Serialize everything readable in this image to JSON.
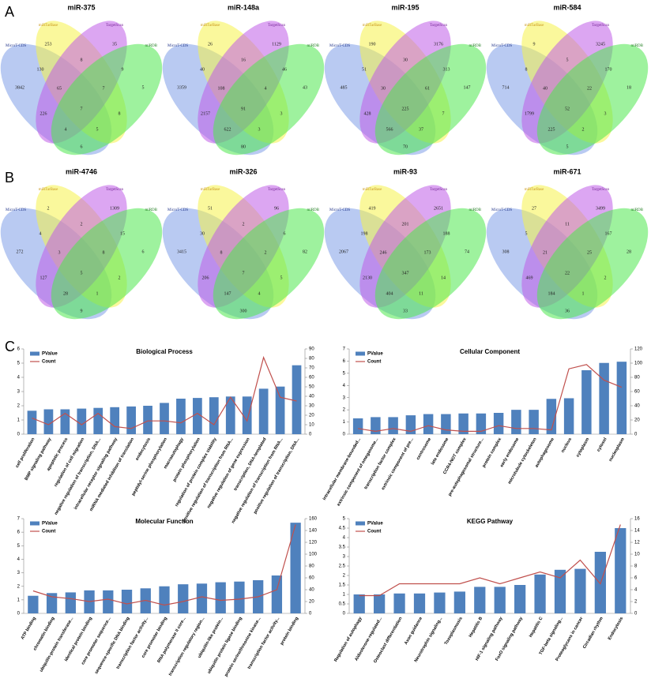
{
  "panel_labels": [
    "A",
    "B",
    "C"
  ],
  "venn": {
    "set_names": [
      "MicroT-CDS",
      "miRTarBase",
      "TargetScan",
      "miRDB"
    ],
    "diagrams": [
      {
        "title": "miR-375",
        "counts": [
          3842,
          253,
          35,
          5,
          130,
          8,
          9,
          226,
          8,
          6,
          65,
          7,
          4,
          5,
          7
        ]
      },
      {
        "title": "miR-148a",
        "counts": [
          3359,
          26,
          1129,
          43,
          40,
          16,
          46,
          2157,
          3,
          80,
          108,
          4,
          622,
          3,
          91
        ]
      },
      {
        "title": "miR-195",
        "counts": [
          485,
          190,
          3176,
          147,
          51,
          30,
          313,
          428,
          7,
          70,
          30,
          61,
          566,
          37,
          225
        ]
      },
      {
        "title": "miR-584",
        "counts": [
          714,
          9,
          3245,
          18,
          8,
          5,
          170,
          1799,
          3,
          5,
          40,
          22,
          225,
          2,
          52
        ]
      },
      {
        "title": "miR-4746",
        "counts": [
          272,
          2,
          1309,
          6,
          4,
          2,
          15,
          127,
          2,
          9,
          3,
          8,
          28,
          1,
          5
        ]
      },
      {
        "title": "miR-326",
        "counts": [
          3415,
          51,
          96,
          82,
          30,
          2,
          6,
          206,
          5,
          300,
          8,
          2,
          147,
          4,
          7
        ]
      },
      {
        "title": "miR-93",
        "counts": [
          2067,
          419,
          2651,
          74,
          198,
          201,
          188,
          2130,
          14,
          33,
          246,
          173,
          404,
          11,
          347
        ]
      },
      {
        "title": "miR-671",
        "counts": [
          308,
          27,
          3499,
          28,
          5,
          11,
          167,
          469,
          2,
          36,
          21,
          25,
          184,
          1,
          22
        ]
      }
    ]
  },
  "chart_data": [
    {
      "type": "bar-line",
      "title": "Biological Process",
      "categories": [
        "cell proliferation",
        "BMP signaling pathway",
        "apoptotic process",
        "regulation of cell migration",
        "negative regulation of transcription, DNA...",
        "intracellular receptor signaling pathway",
        "miRNA mediated inhibition of translation",
        "endocytosis",
        "peptidyl-serine phosphorylation",
        "macroautophagy",
        "protein phosphorylation",
        "regulation of protein complex stability",
        "positive regulation of transcription from RNA...",
        "negative regulation of gene expression",
        "transcription, DNA-templated",
        "negative regulation of transcription from RNA...",
        "positive regulation of transcription, DNA..."
      ],
      "series": [
        {
          "name": "PValue",
          "color": "#4f81bd",
          "values": [
            1.65,
            1.75,
            1.75,
            1.8,
            1.85,
            1.9,
            1.95,
            2.0,
            2.2,
            2.5,
            2.55,
            2.6,
            2.65,
            2.65,
            3.2,
            3.35,
            4.85
          ]
        },
        {
          "name": "Count",
          "color": "#c0504d",
          "axis": "y2",
          "values": [
            17,
            10,
            22,
            10,
            22,
            8,
            6,
            14,
            14,
            12,
            22,
            10,
            39,
            14,
            81,
            39,
            35
          ]
        }
      ],
      "ylim": [
        0,
        6
      ],
      "yticks": [
        0,
        1,
        2,
        3,
        4,
        5,
        6
      ],
      "y2lim": [
        0,
        90
      ],
      "y2ticks": [
        0,
        10,
        20,
        30,
        40,
        50,
        60,
        70,
        80,
        90
      ]
    },
    {
      "type": "bar-line",
      "title": "Cellular Component",
      "categories": [
        "intracellular membrane-bounded...",
        "extrinsic component of omegasome...",
        "transcription factor complex",
        "extrinsic component of pre...",
        "centrosome",
        "late endosome",
        "CCR4-NOT complex",
        "pre-autophagosomal structure...",
        "protein complex",
        "early endosome",
        "microtubule cytoskeleton",
        "autophagosome",
        "nucleus",
        "cytoplasm",
        "cytosol",
        "nucleoplasm"
      ],
      "series": [
        {
          "name": "PValue",
          "color": "#4f81bd",
          "values": [
            1.3,
            1.4,
            1.4,
            1.55,
            1.65,
            1.65,
            1.7,
            1.7,
            1.75,
            2.0,
            2.0,
            2.9,
            2.95,
            5.25,
            5.85,
            5.95
          ]
        },
        {
          "name": "Count",
          "color": "#c0504d",
          "axis": "y2",
          "values": [
            8,
            4,
            8,
            4,
            12,
            6,
            4,
            4,
            12,
            8,
            8,
            6,
            92,
            98,
            76,
            66
          ]
        }
      ],
      "ylim": [
        0,
        7
      ],
      "yticks": [
        0,
        1,
        2,
        3,
        4,
        5,
        6,
        7
      ],
      "y2lim": [
        0,
        120
      ],
      "y2ticks": [
        0,
        20,
        40,
        60,
        80,
        100,
        120
      ]
    },
    {
      "type": "bar-line",
      "title": "Molecular Function",
      "categories": [
        "ATP binding",
        "chromatin binding",
        "ubiquitin-protein transferase...",
        "identical protein binding",
        "core promoter sequence...",
        "sequence-specific DNA binding",
        "transcription factor activity...",
        "core promoter binding",
        "RNA polymerase II core...",
        "transcription regulatory region...",
        "ubiquitin-like protein...",
        "ubiquitin protein ligase binding",
        "protein serine/threonine kinase...",
        "transcription factor activity...",
        "protein binding"
      ],
      "series": [
        {
          "name": "PValue",
          "color": "#4f81bd",
          "values": [
            1.3,
            1.5,
            1.55,
            1.7,
            1.7,
            1.75,
            1.85,
            2.0,
            2.15,
            2.2,
            2.3,
            2.35,
            2.45,
            2.8,
            6.7
          ]
        },
        {
          "name": "Count",
          "color": "#c0504d",
          "axis": "y2",
          "values": [
            38,
            28,
            25,
            20,
            24,
            16,
            22,
            14,
            20,
            28,
            22,
            24,
            28,
            40,
            150
          ]
        }
      ],
      "ylim": [
        0,
        7
      ],
      "yticks": [
        0,
        1,
        2,
        3,
        4,
        5,
        6,
        7
      ],
      "y2lim": [
        0,
        160
      ],
      "y2ticks": [
        0,
        20,
        40,
        60,
        80,
        100,
        120,
        140,
        160
      ]
    },
    {
      "type": "bar-line",
      "title": "KEGG Pathway",
      "categories": [
        "Regulation of autophagy",
        "Aldosterone-regulated...",
        "Osteoclast differentiation",
        "Axon guidance",
        "Neurotrophin signaling...",
        "Toxoplasmosis",
        "Hepatitis B",
        "HIF-1 signaling pathway",
        "FoxO signaling pathway",
        "Hepatitis C",
        "TGF-beta signaling...",
        "Proteoglycans in cancer",
        "Circadian rhythm",
        "Endocytosis"
      ],
      "series": [
        {
          "name": "PValue",
          "color": "#4f81bd",
          "values": [
            1.0,
            1.0,
            1.05,
            1.05,
            1.1,
            1.15,
            1.4,
            1.4,
            1.5,
            2.05,
            2.3,
            2.35,
            3.25,
            4.5
          ]
        },
        {
          "name": "Count",
          "color": "#c0504d",
          "axis": "y2",
          "values": [
            3,
            3,
            5,
            5,
            5,
            5,
            6,
            5,
            6,
            7,
            6,
            9,
            5,
            15
          ]
        }
      ],
      "ylim": [
        0,
        5
      ],
      "yticks": [
        0,
        0.5,
        1,
        1.5,
        2,
        2.5,
        3,
        3.5,
        4,
        4.5,
        5
      ],
      "y2lim": [
        0,
        16
      ],
      "y2ticks": [
        0,
        2,
        4,
        6,
        8,
        10,
        12,
        14,
        16
      ]
    }
  ]
}
